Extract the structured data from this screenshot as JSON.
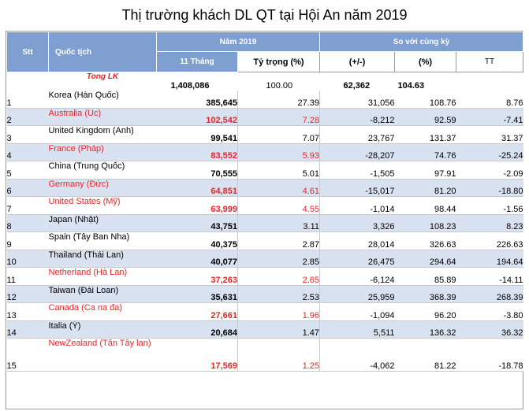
{
  "title": "Thị trường khách DL QT tại Hội An  năm 2019",
  "header": {
    "stt": "Stt",
    "nationality": "Quốc tịch",
    "year_group": "Năm 2019",
    "compare_group": "So với cùng kỳ",
    "months": "11 Tháng",
    "share": "Tỷ trọng (%)",
    "diff": "(+/-)",
    "pct": "(%)",
    "tt": "TT"
  },
  "total": {
    "name": "Tong LK",
    "months": "1,408,086",
    "share": "100.00",
    "diff": "62,362",
    "pct": "104.63",
    "tt": ""
  },
  "rows": [
    {
      "stt": "1",
      "name": "Korea (Hàn Quốc)",
      "months": "385,645",
      "share": "27.39",
      "diff": "31,056",
      "pct": "108.76",
      "tt": "8.76",
      "highlight": false
    },
    {
      "stt": "2",
      "name": "Australia (Úc)",
      "months": "102,542",
      "share": "7.28",
      "diff": "-8,212",
      "pct": "92.59",
      "tt": "-7.41",
      "highlight": true
    },
    {
      "stt": "3",
      "name": "United Kingdom (Anh)",
      "months": "99,541",
      "share": "7.07",
      "diff": "23,767",
      "pct": "131.37",
      "tt": "31.37",
      "highlight": false
    },
    {
      "stt": "4",
      "name": "France (Pháp)",
      "months": "83,552",
      "share": "5.93",
      "diff": "-28,207",
      "pct": "74.76",
      "tt": "-25.24",
      "highlight": true
    },
    {
      "stt": "5",
      "name": "China (Trung Quốc)",
      "months": "70,555",
      "share": "5.01",
      "diff": "-1,505",
      "pct": "97.91",
      "tt": "-2.09",
      "highlight": false
    },
    {
      "stt": "6",
      "name": "Germany (Đức)",
      "months": "64,851",
      "share": "4.61",
      "diff": "-15,017",
      "pct": "81.20",
      "tt": "-18.80",
      "highlight": true
    },
    {
      "stt": "7",
      "name": "United States (Mỹ)",
      "months": "63,999",
      "share": "4.55",
      "diff": "-1,014",
      "pct": "98.44",
      "tt": "-1.56",
      "highlight": true
    },
    {
      "stt": "8",
      "name": "Japan (Nhật)",
      "months": "43,751",
      "share": "3.11",
      "diff": "3,326",
      "pct": "108.23",
      "tt": "8.23",
      "highlight": false
    },
    {
      "stt": "9",
      "name": "Spain  (Tây Ban Nha)",
      "months": "40,375",
      "share": "2.87",
      "diff": "28,014",
      "pct": "326.63",
      "tt": "226.63",
      "highlight": false
    },
    {
      "stt": "10",
      "name": "Thailand (Thái Lan)",
      "months": "40,077",
      "share": "2.85",
      "diff": "26,475",
      "pct": "294.64",
      "tt": "194.64",
      "highlight": false
    },
    {
      "stt": "11",
      "name": "Netherland (Hà Lan)",
      "months": "37,263",
      "share": "2.65",
      "diff": "-6,124",
      "pct": "85.89",
      "tt": "-14.11",
      "highlight": true
    },
    {
      "stt": "12",
      "name": "Taiwan (Đài Loan)",
      "months": "35,631",
      "share": "2.53",
      "diff": "25,959",
      "pct": "368.39",
      "tt": "268.39",
      "highlight": false
    },
    {
      "stt": "13",
      "name": "Canada (Ca na đa)",
      "months": "27,661",
      "share": "1.96",
      "diff": "-1,094",
      "pct": "96.20",
      "tt": "-3.80",
      "highlight": true
    },
    {
      "stt": "14",
      "name": "Italia (Ý)",
      "months": "20,684",
      "share": "1.47",
      "diff": "5,511",
      "pct": "136.32",
      "tt": "36.32",
      "highlight": false
    },
    {
      "stt": "15",
      "name": "NewZealand (Tân Tây lan)",
      "months": "17,569",
      "share": "1.25",
      "diff": "-4,062",
      "pct": "81.22",
      "tt": "-18.78",
      "highlight": true
    }
  ],
  "colors": {
    "header_blue": "#7e9fd0",
    "stripe_blue": "#d9e2f1",
    "highlight_red": "#e8262a"
  }
}
